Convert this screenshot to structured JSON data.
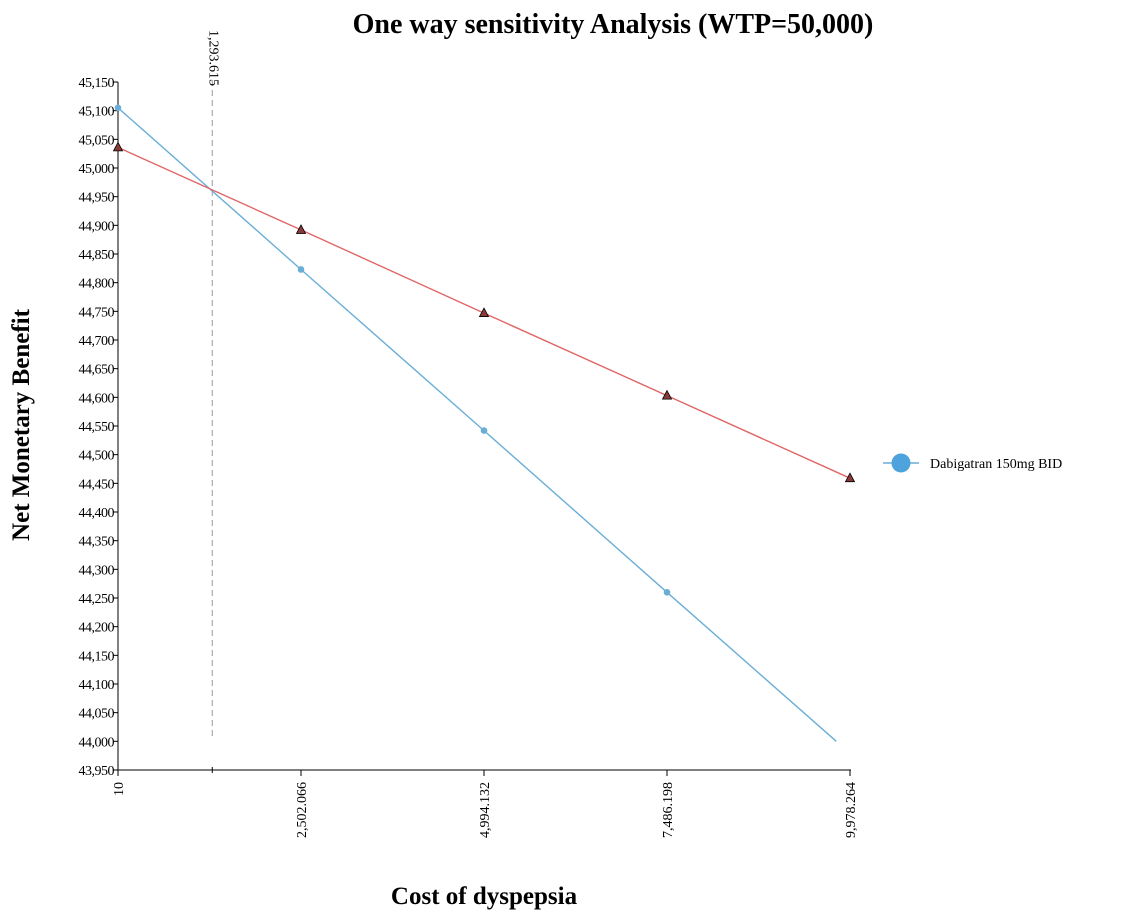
{
  "chart_data": {
    "type": "line",
    "title": "One way sensitivity Analysis (WTP=50,000)",
    "xlabel": "Cost of dyspepsia",
    "ylabel": "Net Monetary Benefit",
    "x": [
      10,
      2502.066,
      4994.132,
      7486.198,
      9978.264
    ],
    "x_tick_labels": [
      "10",
      "2,502.066",
      "4,994.132",
      "7,486.198",
      "9,978.264"
    ],
    "xlim": [
      10,
      9978.264
    ],
    "ylim": [
      43950,
      45150
    ],
    "y_ticks": [
      43950,
      44000,
      44050,
      44100,
      44150,
      44200,
      44250,
      44300,
      44350,
      44400,
      44450,
      44500,
      44550,
      44600,
      44650,
      44700,
      44750,
      44800,
      44850,
      44900,
      44950,
      45000,
      45050,
      45100,
      45150
    ],
    "y_tick_labels": [
      "43,950",
      "44,000",
      "44,050",
      "44,100",
      "44,150",
      "44,200",
      "44,250",
      "44,300",
      "44,350",
      "44,400",
      "44,450",
      "44,500",
      "44,550",
      "44,600",
      "44,650",
      "44,700",
      "44,750",
      "44,800",
      "44,850",
      "44,900",
      "44,950",
      "45,000",
      "45,050",
      "45,100",
      "45,150"
    ],
    "series": [
      {
        "name": "Dabigatran 150mg BID",
        "color": "#6aaed6",
        "marker": "circle",
        "values": [
          45105,
          44823,
          44542,
          44260,
          43979
        ]
      },
      {
        "color": "#e06666",
        "marker_fill": "#8b3a3a",
        "marker": "triangle",
        "values": [
          45036,
          44892,
          44747,
          44603,
          44459
        ]
      }
    ],
    "threshold": {
      "x": 1293.615,
      "label": "1,293.615"
    },
    "grid": false,
    "legend_position": "right"
  }
}
